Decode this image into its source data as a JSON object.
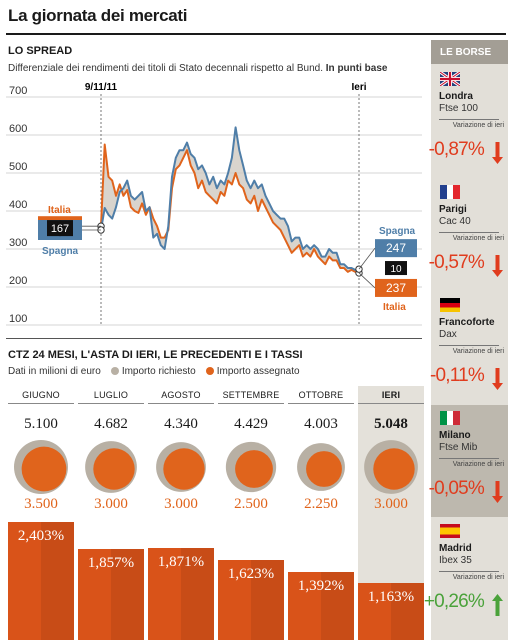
{
  "page_title": "La giornata dei mercati",
  "spread": {
    "title": "LO SPREAD",
    "subtitle": "Differenziale dei rendimenti dei titoli di Stato decennali rispetto al Bund.",
    "subtitle_bold": "In punti base",
    "marker_start": "9/11/11",
    "marker_end": "Ieri",
    "start_italia": "575",
    "start_spagna": "408",
    "start_spread": "167",
    "end_italia": "237",
    "end_spagna": "247",
    "end_spread": "10",
    "label_italia": "Italia",
    "label_spagna": "Spagna"
  },
  "chart_data": {
    "type": "line",
    "title": "LO SPREAD",
    "ylim": [
      100,
      700
    ],
    "yticks": [
      "100",
      "200",
      "300",
      "400",
      "500",
      "600",
      "700"
    ],
    "grid": true,
    "series": [
      {
        "name": "Italia",
        "color": "#e0641c",
        "values": [
          360,
          575,
          490,
          480,
          440,
          470,
          440,
          455,
          410,
          400,
          395,
          420,
          390,
          410,
          380,
          360,
          330,
          330,
          350,
          460,
          510,
          520,
          540,
          560,
          520,
          500,
          460,
          480,
          450,
          440,
          430,
          420,
          450,
          440,
          480,
          470,
          500,
          470,
          460,
          430,
          420,
          440,
          400,
          430,
          410,
          390,
          370,
          360,
          350,
          330,
          310,
          290,
          300,
          310,
          280,
          290,
          280,
          300,
          280,
          270,
          260,
          280,
          270,
          270,
          250,
          250,
          240,
          245,
          240,
          237
        ]
      },
      {
        "name": "Spagna",
        "color": "#4f7ea8",
        "values": [
          350,
          408,
          390,
          380,
          410,
          450,
          460,
          480,
          440,
          430,
          440,
          450,
          400,
          410,
          330,
          340,
          310,
          300,
          360,
          490,
          540,
          560,
          560,
          580,
          550,
          540,
          510,
          520,
          500,
          470,
          490,
          460,
          480,
          470,
          500,
          540,
          620,
          560,
          520,
          480,
          460,
          480,
          460,
          470,
          440,
          420,
          400,
          390,
          380,
          380,
          360,
          320,
          330,
          330,
          300,
          310,
          300,
          310,
          300,
          280,
          280,
          300,
          290,
          290,
          260,
          260,
          250,
          250,
          245,
          247
        ]
      }
    ]
  },
  "auctions": {
    "title": "CTZ 24 MESI,  L'ASTA DI IERI, LE PRECEDENTI E I TASSI",
    "legend_note": "Dati in milioni di euro",
    "legend_requested": "Importo richiesto",
    "legend_assigned": "Importo assegnato",
    "color_requested": "#b8b0a4",
    "color_assigned": "#e0641c",
    "items": [
      {
        "month": "GIUGNO",
        "requested_label": "5.100",
        "requested": 5100,
        "assigned_label": "3.500",
        "assigned": 3500,
        "rate_label": "2,403%",
        "rate": 2.403
      },
      {
        "month": "LUGLIO",
        "requested_label": "4.682",
        "requested": 4682,
        "assigned_label": "3.000",
        "assigned": 3000,
        "rate_label": "1,857%",
        "rate": 1.857
      },
      {
        "month": "AGOSTO",
        "requested_label": "4.340",
        "requested": 4340,
        "assigned_label": "3.000",
        "assigned": 3000,
        "rate_label": "1,871%",
        "rate": 1.871
      },
      {
        "month": "SETTEMBRE",
        "requested_label": "4.429",
        "requested": 4429,
        "assigned_label": "2.500",
        "assigned": 2500,
        "rate_label": "1,623%",
        "rate": 1.623
      },
      {
        "month": "OTTOBRE",
        "requested_label": "4.003",
        "requested": 4003,
        "assigned_label": "2.250",
        "assigned": 2250,
        "rate_label": "1,392%",
        "rate": 1.392
      },
      {
        "month": "IERI",
        "requested_label": "5.048",
        "requested": 5048,
        "assigned_label": "3.000",
        "assigned": 3000,
        "rate_label": "1,163%",
        "rate": 1.163
      }
    ]
  },
  "borse": {
    "title": "LE BORSE",
    "var_label": "Variazione di ieri",
    "markets": [
      {
        "city": "Londra",
        "index": "Ftse 100",
        "value": "-0,87%",
        "direction": "down",
        "flag": "uk-flag-icon"
      },
      {
        "city": "Parigi",
        "index": "Cac 40",
        "value": "-0,57%",
        "direction": "down",
        "flag": "france-flag-icon"
      },
      {
        "city": "Francoforte",
        "index": "Dax",
        "value": "-0,11%",
        "direction": "down",
        "flag": "germany-flag-icon"
      },
      {
        "city": "Milano",
        "index": "Ftse Mib",
        "value": "-0,05%",
        "direction": "down",
        "flag": "italy-flag-icon"
      },
      {
        "city": "Madrid",
        "index": "Ibex 35",
        "value": "+0,26%",
        "direction": "up",
        "flag": "spain-flag-icon"
      }
    ],
    "color_down": "#e03c1e",
    "color_up": "#4aa23a"
  }
}
